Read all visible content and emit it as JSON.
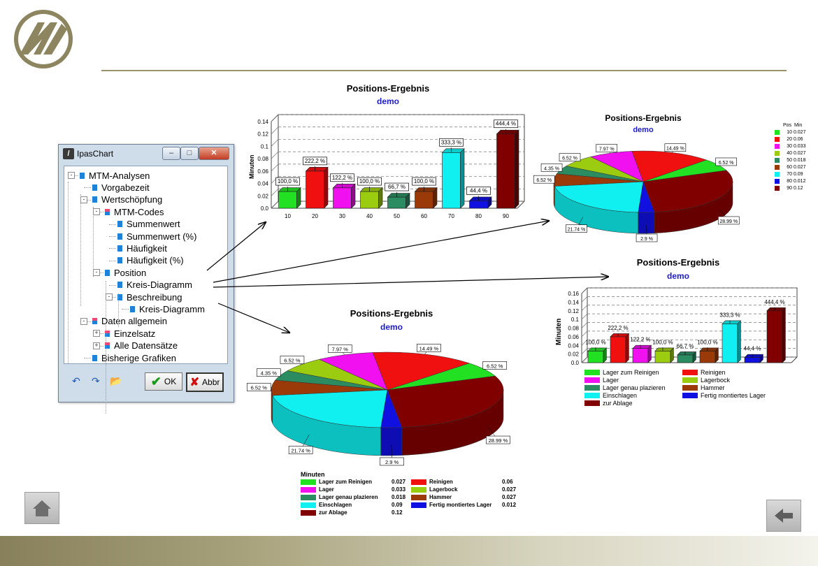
{
  "window": {
    "title": "IpasChart",
    "tree": [
      {
        "label": "MTM-Analysen",
        "level": 0,
        "expand": "-"
      },
      {
        "label": "Vorgabezeit",
        "level": 1,
        "expand": ""
      },
      {
        "label": "Wertschöpfung",
        "level": 1,
        "expand": "-"
      },
      {
        "label": "MTM-Codes",
        "level": 2,
        "expand": "-"
      },
      {
        "label": "Summenwert",
        "level": 3,
        "expand": ""
      },
      {
        "label": "Summenwert (%)",
        "level": 3,
        "expand": ""
      },
      {
        "label": "Häufigkeit",
        "level": 3,
        "expand": ""
      },
      {
        "label": "Häufigkeit (%)",
        "level": 3,
        "expand": ""
      },
      {
        "label": "Position",
        "level": 2,
        "expand": "-"
      },
      {
        "label": "Kreis-Diagramm",
        "level": 3,
        "expand": ""
      },
      {
        "label": "Beschreibung",
        "level": 3,
        "expand": "-"
      },
      {
        "label": "Kreis-Diagramm",
        "level": 4,
        "expand": ""
      },
      {
        "label": "Daten allgemein",
        "level": 1,
        "expand": "-"
      },
      {
        "label": "Einzelsatz",
        "level": 2,
        "expand": "+"
      },
      {
        "label": "Alle Datensätze",
        "level": 2,
        "expand": "+"
      },
      {
        "label": "Bisherige Grafiken",
        "level": 1,
        "expand": ""
      }
    ],
    "ok_label": "OK",
    "cancel_label": "Abbr"
  },
  "chart_data": [
    {
      "type": "bar",
      "title": "Positions-Ergebnis",
      "subtitle": "demo",
      "ylabel": "Minuten",
      "categories": [
        "10",
        "20",
        "30",
        "40",
        "50",
        "60",
        "70",
        "80",
        "90"
      ],
      "values": [
        0.027,
        0.06,
        0.033,
        0.027,
        0.018,
        0.027,
        0.09,
        0.012,
        0.12
      ],
      "data_labels": [
        "100,0 %",
        "222,2 %",
        "122,2 %",
        "100,0 %",
        "66,7 %",
        "100,0 %",
        "333,3 %",
        "44,4 %",
        "444,4 %"
      ],
      "yticks": [
        "0.0",
        "0.02",
        "0.04",
        "0.06",
        "0.08",
        "0.1",
        "0.12",
        "0.14"
      ],
      "ylim": [
        0,
        0.14
      ]
    },
    {
      "type": "pie",
      "title": "Positions-Ergebnis",
      "subtitle": "demo",
      "legend_header": [
        "Pos",
        "Min"
      ],
      "legend": [
        {
          "pos": "10",
          "min": "0.027"
        },
        {
          "pos": "20",
          "min": "0.06"
        },
        {
          "pos": "30",
          "min": "0.033"
        },
        {
          "pos": "40",
          "min": "0.027"
        },
        {
          "pos": "50",
          "min": "0.018"
        },
        {
          "pos": "60",
          "min": "0.027"
        },
        {
          "pos": "70",
          "min": "0.09"
        },
        {
          "pos": "80",
          "min": "0.012"
        },
        {
          "pos": "90",
          "min": "0.12"
        }
      ],
      "slice_labels": [
        "6.52 %",
        "14.49 %",
        "7.97 %",
        "6.52 %",
        "4.35 %",
        "6.52 %",
        "21.74 %",
        "2.9 %",
        "28.99 %"
      ]
    },
    {
      "type": "bar",
      "title": "Positions-Ergebnis",
      "subtitle": "demo",
      "ylabel": "Minuten",
      "values": [
        0.027,
        0.06,
        0.033,
        0.027,
        0.018,
        0.027,
        0.09,
        0.012,
        0.12
      ],
      "data_labels": [
        "100,0 %",
        "222,2 %",
        "122,2 %",
        "100,0 %",
        "66,7 %",
        "100,0 %",
        "333,3 %",
        "44,4 %",
        "444,4 %"
      ],
      "yticks": [
        "0.0",
        "0.02",
        "0.04",
        "0.06",
        "0.08",
        "0.1",
        "0.12",
        "0.14",
        "0.16"
      ],
      "ylim": [
        0,
        0.16
      ],
      "legend": [
        "Lager zum Reinigen",
        "Reinigen",
        "Lager",
        "Lagerbock",
        "Lager genau plazieren",
        "Hammer",
        "Einschlagen",
        "Fertig montiertes Lager",
        "zur Ablage"
      ]
    },
    {
      "type": "pie",
      "title": "Positions-Ergebnis",
      "subtitle": "demo",
      "slice_labels": [
        "6.52 %",
        "14.49 %",
        "7.97 %",
        "6.52 %",
        "4.35 %",
        "6.52 %",
        "21.74 %",
        "2.9 %",
        "28.99 %"
      ],
      "legend_title": "Minuten",
      "legend": [
        {
          "name": "Lager zum Reinigen",
          "value": "0.027"
        },
        {
          "name": "Reinigen",
          "value": "0.06"
        },
        {
          "name": "Lager",
          "value": "0.033"
        },
        {
          "name": "Lagerbock",
          "value": "0.027"
        },
        {
          "name": "Lager genau plazieren",
          "value": "0.018"
        },
        {
          "name": "Hammer",
          "value": "0.027"
        },
        {
          "name": "Einschlagen",
          "value": "0.09"
        },
        {
          "name": "Fertig montiertes Lager",
          "value": "0.012"
        },
        {
          "name": "zur Ablage",
          "value": "0.12"
        }
      ]
    }
  ],
  "colors": [
    "#22e022",
    "#f01010",
    "#f010f0",
    "#9ccc10",
    "#2a8c60",
    "#9a3a08",
    "#10f0f0",
    "#1010e0",
    "#800000"
  ],
  "icons": {
    "logo": "logo-icon",
    "home": "home-icon",
    "back": "back-arrow-icon"
  }
}
